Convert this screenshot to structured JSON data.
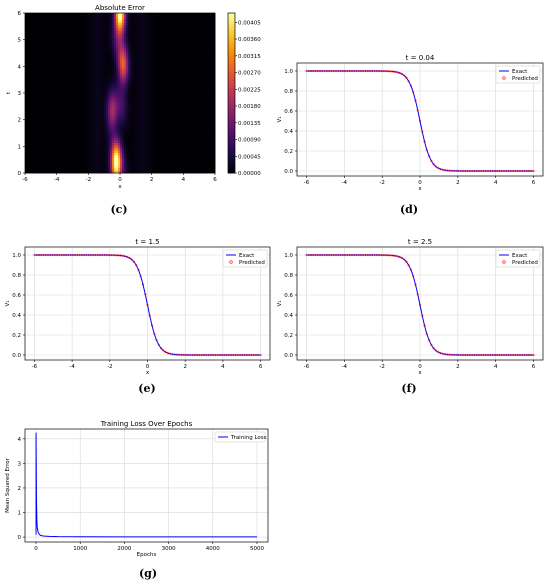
{
  "captions": [
    "(c)",
    "(d)",
    "(e)",
    "(f)",
    "(g)"
  ],
  "chart_data": [
    {
      "type": "heatmap",
      "title": "Absolute Error",
      "xlabel": "x",
      "ylabel": "t",
      "xlim": [
        -6,
        6
      ],
      "ylim": [
        0,
        6
      ],
      "xticks": [
        "-6",
        "-4",
        "-2",
        "0",
        "2",
        "4",
        "6"
      ],
      "yticks": [
        "0",
        "1",
        "2",
        "3",
        "4",
        "5",
        "6"
      ],
      "colorbar_ticks": [
        "0.00000",
        "0.00045",
        "0.00090",
        "0.00135",
        "0.00180",
        "0.00225",
        "0.00270",
        "0.00315",
        "0.00360",
        "0.00405"
      ],
      "colorbar_range": [
        0,
        0.0043
      ],
      "colormap": "inferno",
      "hotspots": [
        {
          "x": 0.0,
          "t": 5.9,
          "value": 0.0043
        },
        {
          "x": -0.25,
          "t": 0.35,
          "value": 0.0041
        },
        {
          "x": 0.2,
          "t": 4.0,
          "value": 0.0022
        },
        {
          "x": -0.5,
          "t": 2.3,
          "value": 0.0018
        }
      ]
    },
    {
      "type": "line",
      "title": "t = 0.04",
      "xlabel": "x",
      "ylabel": "V₁",
      "xlim": [
        -6.5,
        6.5
      ],
      "ylim": [
        -0.05,
        1.08
      ],
      "xticks": [
        "-6",
        "-4",
        "-2",
        "0",
        "2",
        "4",
        "6"
      ],
      "yticks": [
        "0.0",
        "0.2",
        "0.4",
        "0.6",
        "0.8",
        "1.0"
      ],
      "x": [
        -6,
        -5,
        -4,
        -3,
        -2,
        -1.5,
        -1,
        -0.5,
        -0.25,
        0,
        0.25,
        0.5,
        1,
        1.5,
        2,
        3,
        4,
        5,
        6
      ],
      "series": [
        {
          "name": "Exact",
          "values": [
            1.0,
            1.0,
            1.0,
            1.0,
            0.999,
            0.994,
            0.95,
            0.73,
            0.58,
            0.5,
            0.38,
            0.27,
            0.07,
            0.02,
            0.005,
            0.0,
            0.0,
            0.0,
            0.0
          ]
        },
        {
          "name": "Predicted",
          "values": [
            1.0,
            1.0,
            1.0,
            1.0,
            0.999,
            0.994,
            0.95,
            0.73,
            0.58,
            0.5,
            0.38,
            0.27,
            0.07,
            0.02,
            0.005,
            0.0,
            0.0,
            0.0,
            0.0
          ]
        }
      ],
      "grid": true,
      "legend": "top-right"
    },
    {
      "type": "line",
      "title": "t = 1.5",
      "xlabel": "x",
      "ylabel": "V₁",
      "xlim": [
        -6.5,
        6.5
      ],
      "ylim": [
        -0.05,
        1.08
      ],
      "xticks": [
        "-6",
        "-4",
        "-2",
        "0",
        "2",
        "4",
        "6"
      ],
      "yticks": [
        "0.0",
        "0.2",
        "0.4",
        "0.6",
        "0.8",
        "1.0"
      ],
      "x": [
        -6,
        -5,
        -4,
        -3,
        -2,
        -1.5,
        -1,
        -0.5,
        -0.25,
        0,
        0.25,
        0.5,
        1,
        1.5,
        2,
        3,
        4,
        5,
        6
      ],
      "series": [
        {
          "name": "Exact",
          "values": [
            1.0,
            1.0,
            1.0,
            1.0,
            0.999,
            0.994,
            0.95,
            0.73,
            0.58,
            0.5,
            0.38,
            0.27,
            0.07,
            0.02,
            0.005,
            0.0,
            0.0,
            0.0,
            0.0
          ]
        },
        {
          "name": "Predicted",
          "values": [
            1.0,
            1.0,
            1.0,
            1.0,
            0.999,
            0.994,
            0.95,
            0.73,
            0.58,
            0.5,
            0.38,
            0.27,
            0.07,
            0.02,
            0.005,
            0.0,
            0.0,
            0.0,
            0.0
          ]
        }
      ],
      "grid": true,
      "legend": "top-right"
    },
    {
      "type": "line",
      "title": "t = 2.5",
      "xlabel": "x",
      "ylabel": "V₁",
      "xlim": [
        -6.5,
        6.5
      ],
      "ylim": [
        -0.05,
        1.08
      ],
      "xticks": [
        "-6",
        "-4",
        "-2",
        "0",
        "2",
        "4",
        "6"
      ],
      "yticks": [
        "0.0",
        "0.2",
        "0.4",
        "0.6",
        "0.8",
        "1.0"
      ],
      "x": [
        -6,
        -5,
        -4,
        -3,
        -2,
        -1.5,
        -1,
        -0.5,
        -0.25,
        0,
        0.25,
        0.5,
        1,
        1.5,
        2,
        3,
        4,
        5,
        6
      ],
      "series": [
        {
          "name": "Exact",
          "values": [
            1.0,
            1.0,
            1.0,
            1.0,
            0.999,
            0.994,
            0.95,
            0.73,
            0.58,
            0.5,
            0.38,
            0.27,
            0.07,
            0.02,
            0.005,
            0.0,
            0.0,
            0.0,
            0.0
          ]
        },
        {
          "name": "Predicted",
          "values": [
            1.0,
            1.0,
            1.0,
            1.0,
            0.999,
            0.994,
            0.95,
            0.73,
            0.58,
            0.5,
            0.38,
            0.27,
            0.07,
            0.02,
            0.005,
            0.0,
            0.0,
            0.0,
            0.0
          ]
        }
      ],
      "grid": true,
      "legend": "top-right"
    },
    {
      "type": "line",
      "title": "Training Loss Over Epochs",
      "xlabel": "Epochs",
      "ylabel": "Mean Squared Error",
      "xlim": [
        -250,
        5250
      ],
      "ylim": [
        -0.2,
        4.4
      ],
      "xticks": [
        "0",
        "1000",
        "2000",
        "3000",
        "4000",
        "5000"
      ],
      "yticks": [
        "0",
        "1",
        "2",
        "3",
        "4"
      ],
      "x": [
        0,
        10,
        20,
        30,
        40,
        60,
        80,
        100,
        150,
        200,
        300,
        500,
        1000,
        2000,
        3000,
        4000,
        5000
      ],
      "series": [
        {
          "name": "Training Loss",
          "values": [
            4.25,
            1.5,
            0.6,
            0.35,
            0.25,
            0.15,
            0.1,
            0.07,
            0.05,
            0.04,
            0.03,
            0.02,
            0.015,
            0.01,
            0.01,
            0.01,
            0.01
          ]
        }
      ],
      "grid": true,
      "legend": "top-right"
    }
  ],
  "colors": {
    "exact_line": "#0000ff",
    "predicted_marker": "#ff0000",
    "loss_line": "#0000ff",
    "grid": "#d9d9d9"
  }
}
